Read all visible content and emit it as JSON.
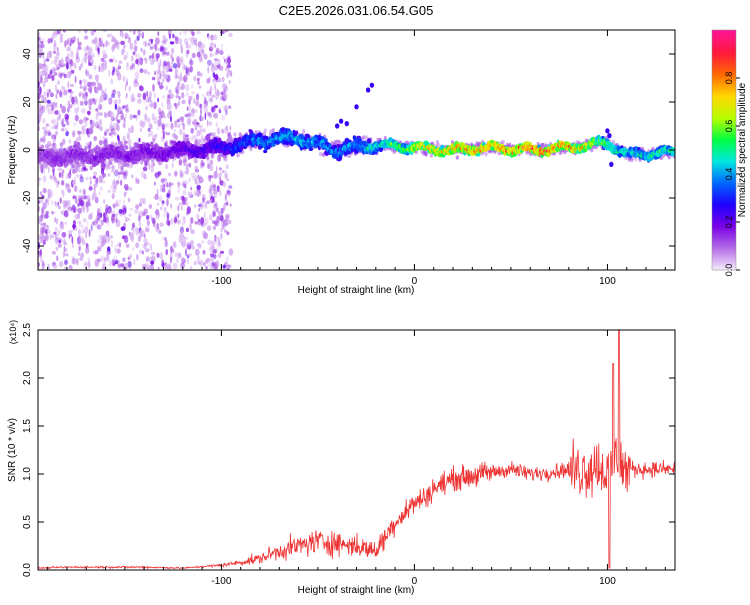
{
  "title": "C2E5.2026.031.06.54.G05",
  "chart_data": [
    {
      "type": "heatmap",
      "xlabel": "Height of straight line (km)",
      "ylabel": "Frequency (Hz)",
      "xlim": [
        -195,
        135
      ],
      "ylim": [
        -50,
        50
      ],
      "xticks": [
        -100,
        0,
        100
      ],
      "yticks": [
        -40,
        -20,
        0,
        20,
        40
      ],
      "colorbar": {
        "label": "Normalized spectral amplitude",
        "range": [
          0,
          1
        ],
        "ticks": [
          "0.0",
          "0.2",
          "0.4",
          "0.6",
          "0.8"
        ],
        "colors": [
          "#f4e9fb",
          "#b36be6",
          "#7a00e6",
          "#1f00ff",
          "#0068ff",
          "#00e8e0",
          "#00ff40",
          "#b8ff00",
          "#ffd800",
          "#ff6a00",
          "#ff1a3a",
          "#ff1493"
        ]
      },
      "band": [
        {
          "x": -195,
          "freq": -3,
          "amp": 0.15
        },
        {
          "x": -160,
          "freq": -2,
          "amp": 0.18
        },
        {
          "x": -130,
          "freq": -1,
          "amp": 0.2
        },
        {
          "x": -100,
          "freq": 1,
          "amp": 0.28
        },
        {
          "x": -80,
          "freq": 4,
          "amp": 0.42
        },
        {
          "x": -60,
          "freq": 5,
          "amp": 0.45
        },
        {
          "x": -40,
          "freq": 0,
          "amp": 0.4
        },
        {
          "x": -20,
          "freq": 2,
          "amp": 0.5
        },
        {
          "x": 0,
          "freq": 1,
          "amp": 0.7
        },
        {
          "x": 20,
          "freq": 0,
          "amp": 0.85
        },
        {
          "x": 40,
          "freq": 1,
          "amp": 0.85
        },
        {
          "x": 60,
          "freq": 0,
          "amp": 0.9
        },
        {
          "x": 80,
          "freq": 1,
          "amp": 0.85
        },
        {
          "x": 100,
          "freq": 3,
          "amp": 0.6
        },
        {
          "x": 110,
          "freq": -2,
          "amp": 0.5
        },
        {
          "x": 135,
          "freq": -1,
          "amp": 0.55
        }
      ]
    },
    {
      "type": "line",
      "xlabel": "Height of straight line (km)",
      "ylabel": "SNR (10 * v/v)",
      "yscale_label": "(x10⁴)",
      "xlim": [
        -195,
        135
      ],
      "ylim": [
        0,
        2.5
      ],
      "xticks": [
        -100,
        0,
        100
      ],
      "yticks": [
        "0.0",
        "0.5",
        "1.0",
        "1.5",
        "2.0",
        "2.5"
      ],
      "color": "#ee3333",
      "series": [
        {
          "x": [
            -195,
            -180,
            -160,
            -140,
            -120,
            -100,
            -90,
            -80,
            -70,
            -60,
            -50,
            -40,
            -30,
            -20,
            -15,
            -10,
            -5,
            0,
            5,
            10,
            20,
            30,
            40,
            50,
            60,
            70,
            80,
            90,
            95,
            100,
            103,
            105,
            108,
            110,
            120,
            135
          ],
          "y": [
            0.02,
            0.03,
            0.03,
            0.03,
            0.02,
            0.05,
            0.08,
            0.12,
            0.2,
            0.25,
            0.3,
            0.28,
            0.25,
            0.2,
            0.35,
            0.5,
            0.6,
            0.7,
            0.75,
            0.85,
            0.95,
            0.98,
            1.02,
            1.05,
            1.0,
            1.02,
            1.05,
            1.05,
            1.1,
            1.0,
            1.1,
            1.2,
            1.05,
            1.05,
            1.05,
            1.05
          ]
        }
      ],
      "peak": {
        "x": 106,
        "y": 2.5
      }
    }
  ]
}
